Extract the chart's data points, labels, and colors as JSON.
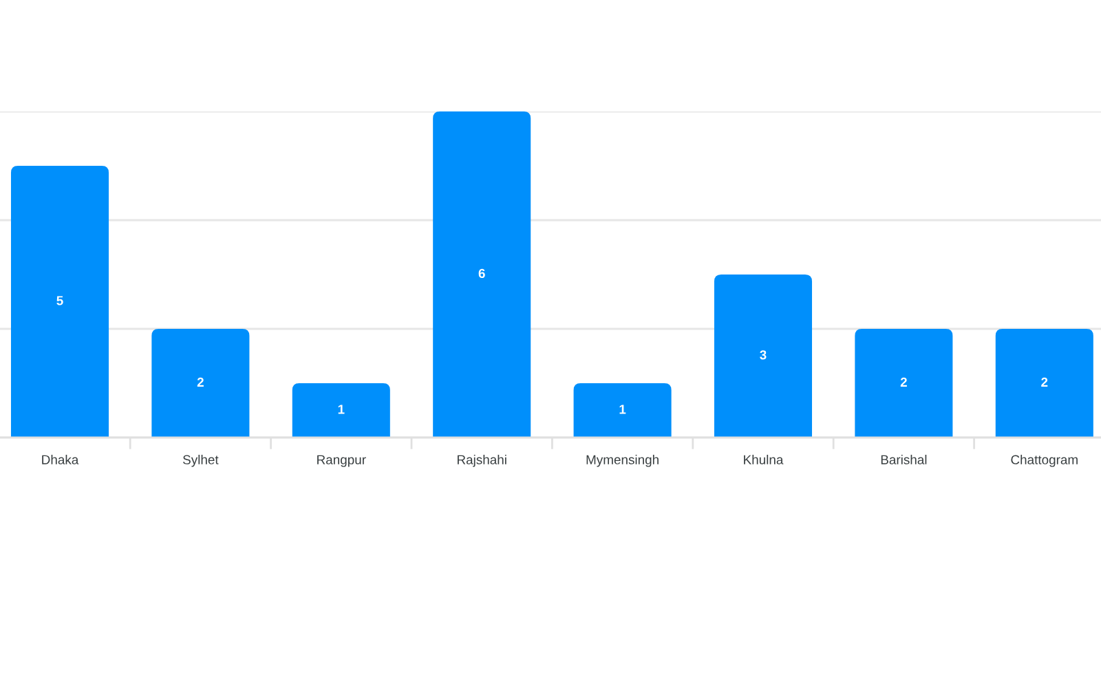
{
  "chart_data": {
    "type": "bar",
    "categories": [
      "Dhaka",
      "Sylhet",
      "Rangpur",
      "Rajshahi",
      "Mymensingh",
      "Khulna",
      "Barishal",
      "Chattogram"
    ],
    "values": [
      5,
      2,
      1,
      6,
      1,
      3,
      2,
      2
    ],
    "color": "#008ffb",
    "ylim": [
      0,
      6
    ],
    "yticks": [
      {
        "value": 0,
        "label": null
      },
      {
        "value": 2,
        "label": null
      },
      {
        "value": 4,
        "label": null
      },
      {
        "value": 6,
        "label": null
      }
    ],
    "grid": "y",
    "data_labels": true,
    "tick_labels": "x"
  }
}
